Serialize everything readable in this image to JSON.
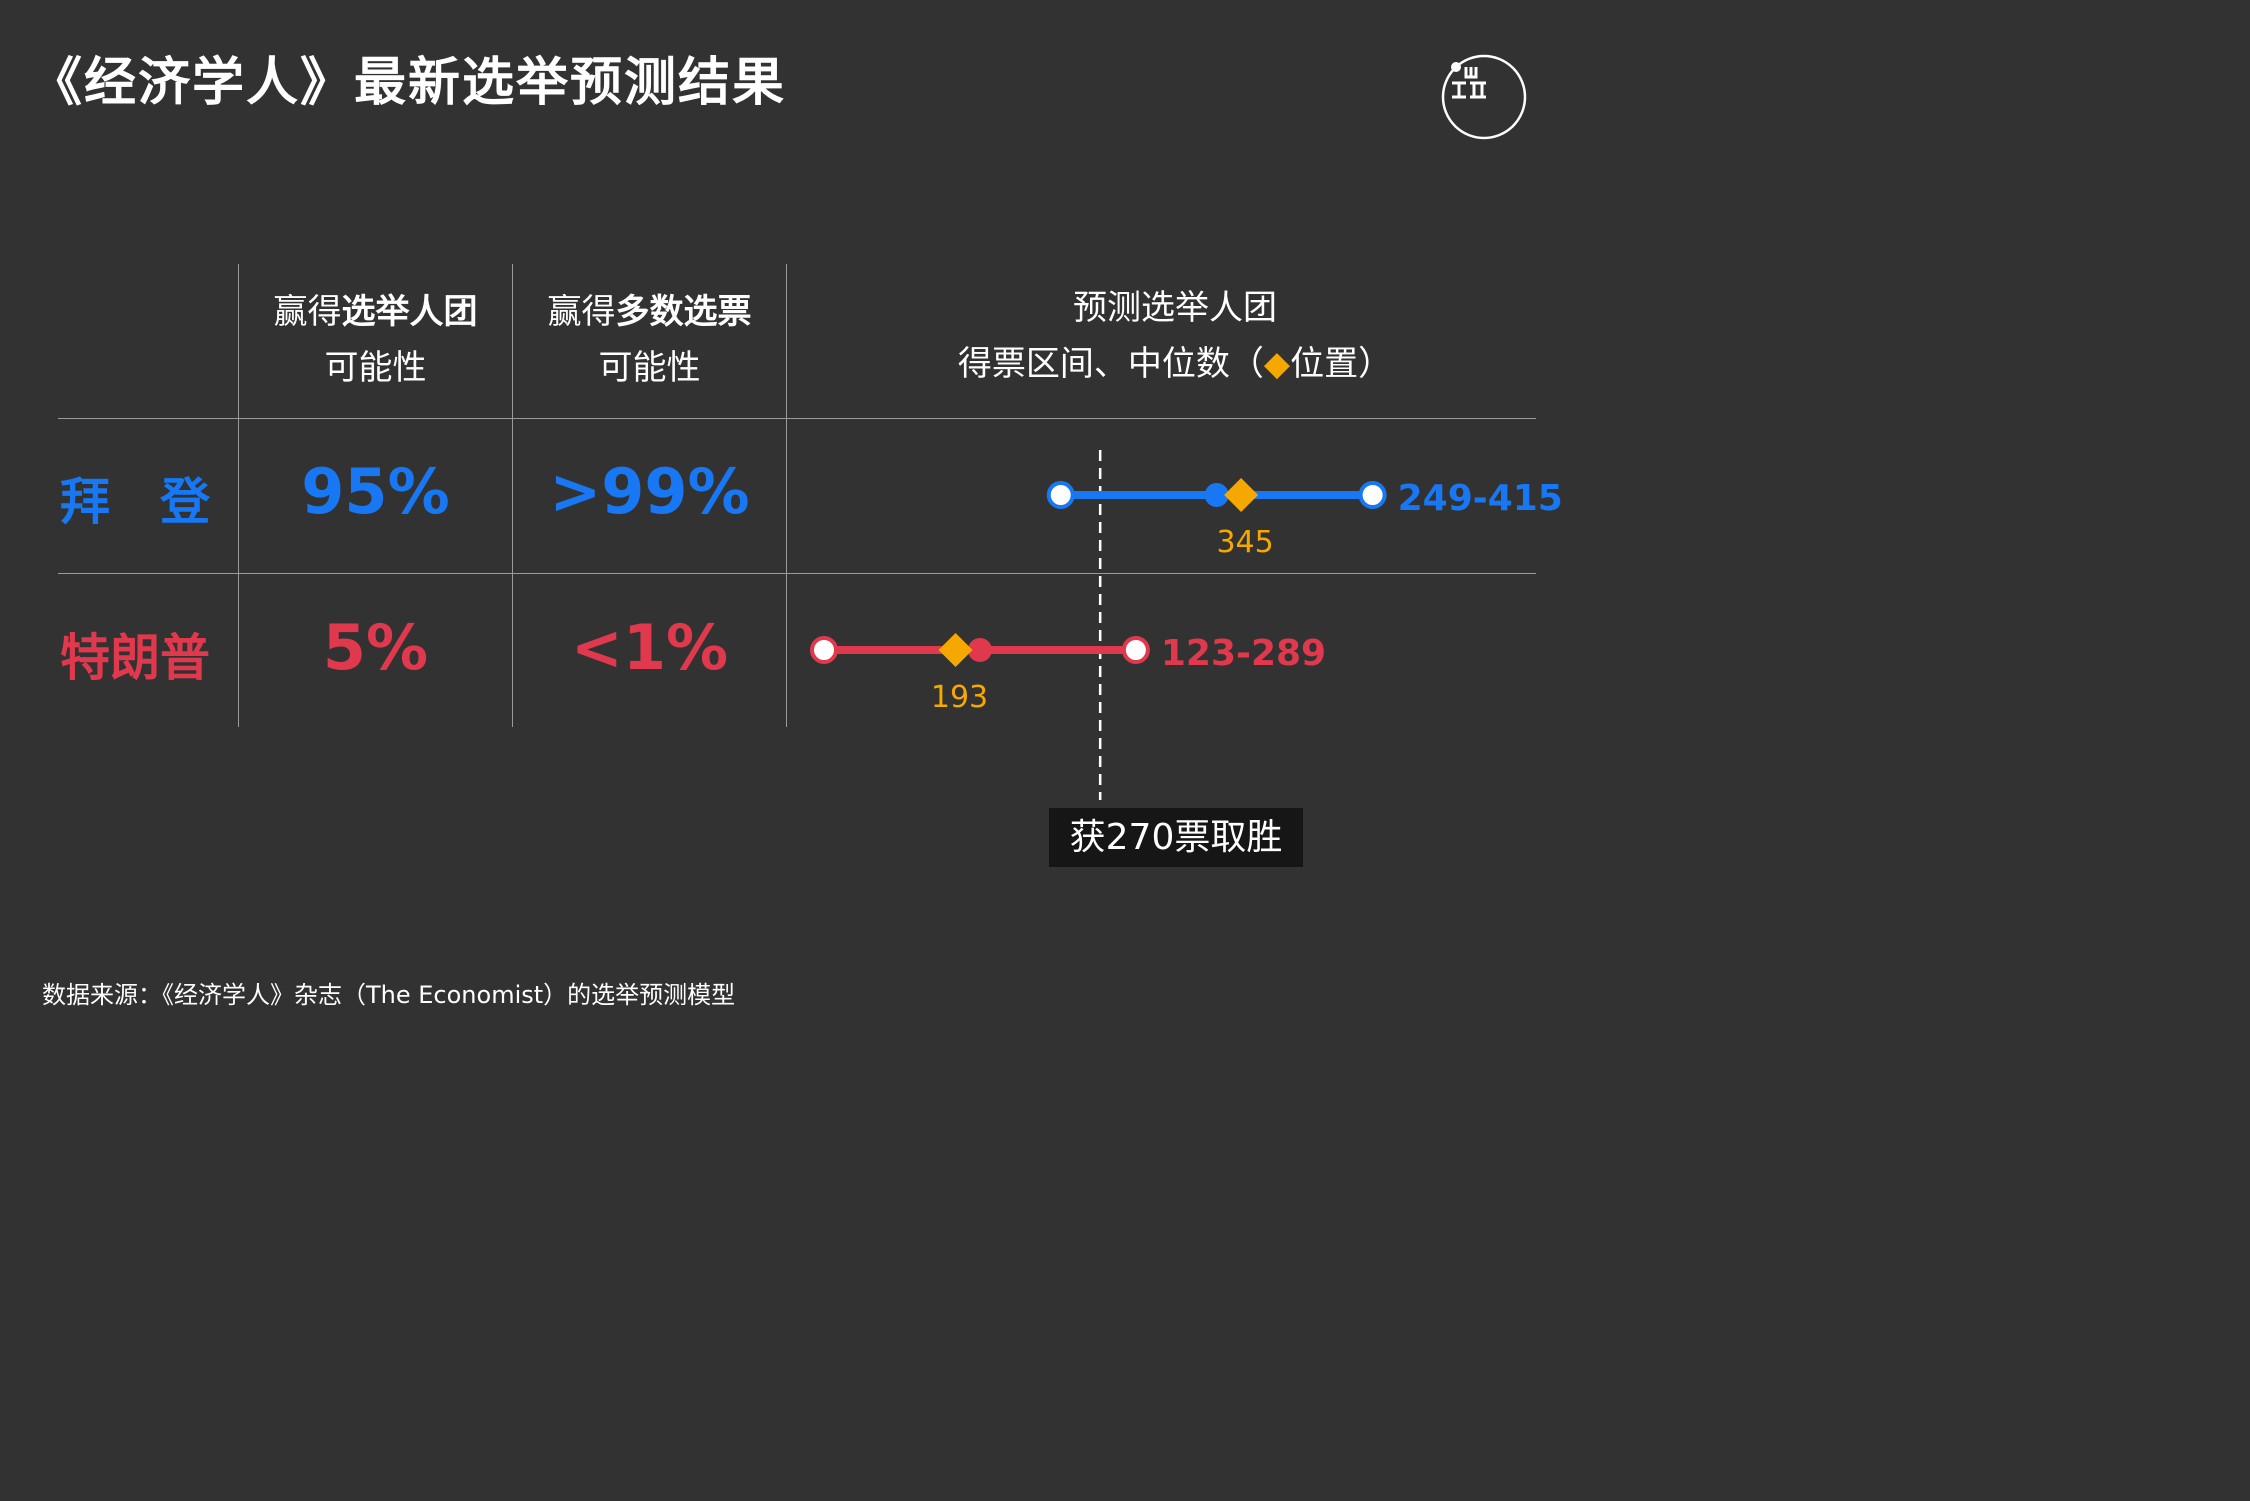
{
  "title": "《经济学人》最新选举预测结果",
  "logo": {
    "icon": "duan-media-logo"
  },
  "headers": {
    "col1": {
      "line1_regular": "赢得",
      "line1_bold": "选举人团",
      "line2": "可能性"
    },
    "col2": {
      "line1_regular": "赢得",
      "line1_bold": "多数选票",
      "line2": "可能性"
    },
    "col3": {
      "line1": "预测选举人团",
      "line2_pre": "得票区间、中位数（",
      "diamond_icon": "◆",
      "line2_post": "位置）"
    }
  },
  "colors": {
    "biden": "#1877f2",
    "trump": "#e0394e",
    "median": "#f5a800",
    "background": "#323232"
  },
  "chart_data": {
    "type": "range",
    "threshold": {
      "value": 270,
      "label": "获270票取胜"
    },
    "series": [
      {
        "name": "拜　登",
        "electoral_college_prob": "95%",
        "popular_vote_prob": ">99%",
        "range_low": 249,
        "range_high": 415,
        "median": 345,
        "range_label": "249-415",
        "median_label": "345",
        "color": "#1877f2"
      },
      {
        "name": "特朗普",
        "electoral_college_prob": "5%",
        "popular_vote_prob": "<1%",
        "range_low": 123,
        "range_high": 289,
        "median": 193,
        "range_label": "123-289",
        "median_label": "193",
        "color": "#e0394e"
      }
    ]
  },
  "source": "数据来源：《经济学人》杂志（The Economist）的选举预测模型"
}
